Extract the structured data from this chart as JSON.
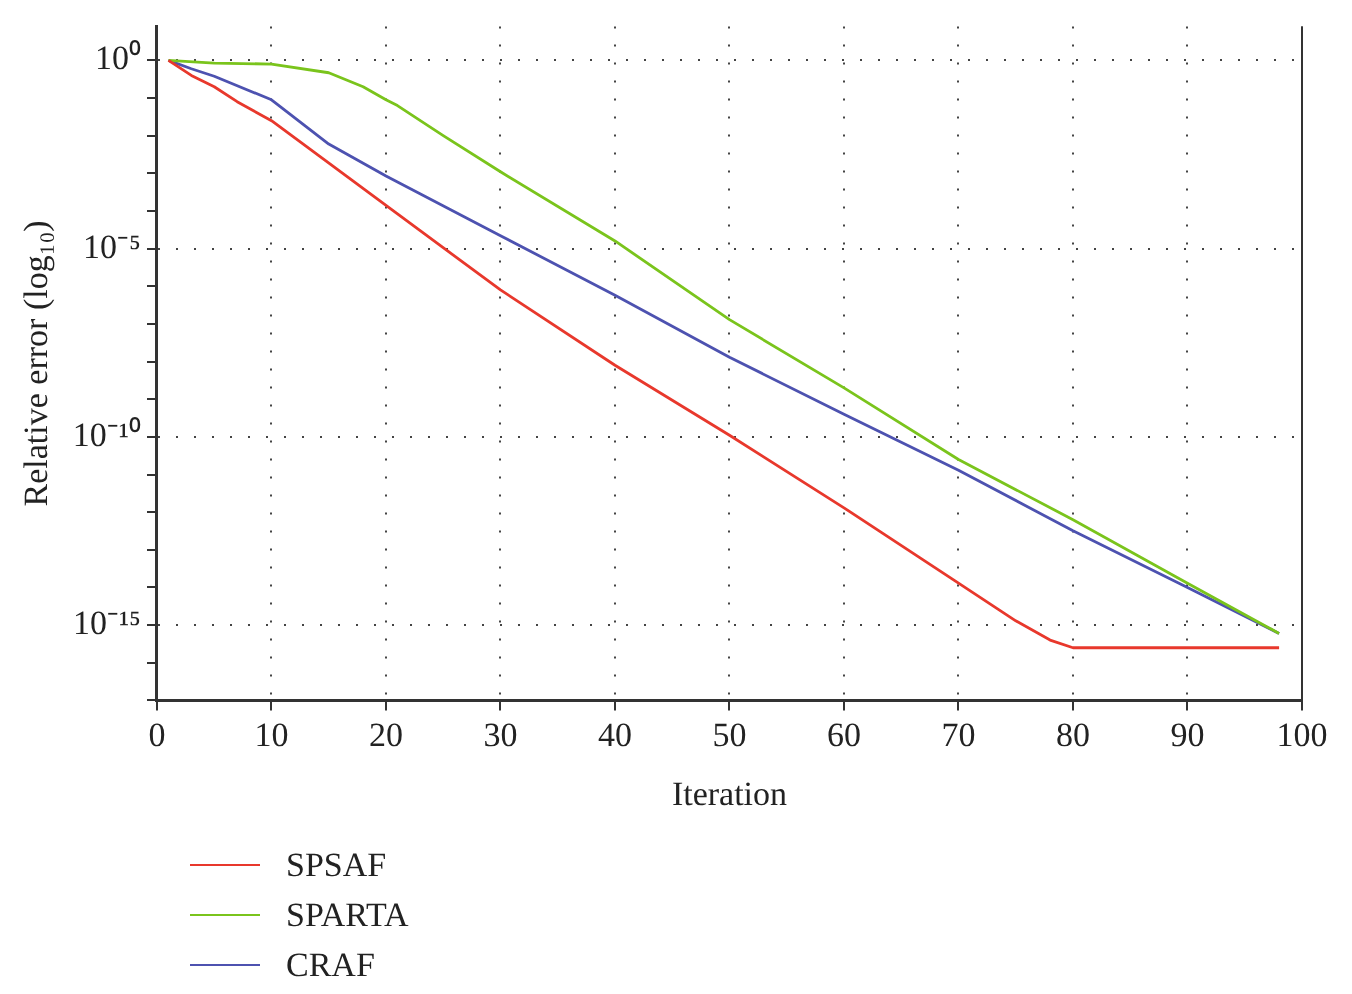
{
  "chart_data": {
    "type": "line",
    "xlabel": "Iteration",
    "ylabel": "Relative error (log₁₀)",
    "log": "y",
    "grid": true,
    "legend": "bottom",
    "marker": "none",
    "line_style": "solid",
    "xlim": [
      0,
      100
    ],
    "xticks": [
      0,
      10,
      20,
      30,
      40,
      50,
      60,
      70,
      80,
      90,
      100
    ],
    "ylim": [
      1e-17,
      8
    ],
    "yticks": [
      {
        "value": 1,
        "label": "10⁰"
      },
      {
        "value": 0.1,
        "label": null
      },
      {
        "value": 0.01,
        "label": null
      },
      {
        "value": 0.001,
        "label": null
      },
      {
        "value": 0.0001,
        "label": null
      },
      {
        "value": 1e-05,
        "label": "10⁻⁵"
      },
      {
        "value": 1e-06,
        "label": null
      },
      {
        "value": 1e-07,
        "label": null
      },
      {
        "value": 1e-08,
        "label": null
      },
      {
        "value": 1e-09,
        "label": null
      },
      {
        "value": 1e-10,
        "label": "10⁻¹⁰"
      },
      {
        "value": 1e-11,
        "label": null
      },
      {
        "value": 1e-12,
        "label": null
      },
      {
        "value": 1e-13,
        "label": null
      },
      {
        "value": 1e-14,
        "label": null
      },
      {
        "value": 1e-15,
        "label": "10⁻¹⁵"
      },
      {
        "value": 1e-16,
        "label": null
      },
      {
        "value": 1e-17,
        "label": null
      }
    ],
    "series": [
      {
        "name": "SPSAF",
        "color": "#e8382c",
        "x": [
          1,
          3,
          5,
          7,
          10,
          20,
          30,
          40,
          50,
          60,
          70,
          75,
          78,
          80,
          98
        ],
        "values": [
          1,
          0.4,
          0.2,
          0.08,
          0.025,
          0.00014,
          8e-07,
          8e-09,
          1.1e-10,
          1.3e-12,
          1.3e-14,
          1.3e-15,
          4e-16,
          2.5e-16,
          2.5e-16
        ]
      },
      {
        "name": "SPARTA",
        "color": "#7ac41c",
        "x": [
          1,
          5,
          10,
          15,
          18,
          20,
          21,
          25,
          30,
          40,
          50,
          60,
          70,
          80,
          90,
          98
        ],
        "values": [
          1,
          0.85,
          0.8,
          0.47,
          0.2,
          0.09,
          0.063,
          0.01,
          0.0011,
          1.6e-05,
          1.3e-07,
          2e-09,
          2.5e-11,
          6.3e-13,
          1.3e-14,
          6e-16
        ]
      },
      {
        "name": "CRAF",
        "color": "#4d52b0",
        "x": [
          1,
          3,
          5,
          10,
          15,
          20,
          30,
          40,
          50,
          60,
          70,
          80,
          90,
          98
        ],
        "values": [
          1,
          0.6,
          0.38,
          0.09,
          0.006,
          0.00085,
          2.2e-05,
          5.8e-07,
          1.3e-08,
          4e-10,
          1.3e-11,
          3.2e-13,
          1e-14,
          6e-16
        ]
      }
    ]
  }
}
